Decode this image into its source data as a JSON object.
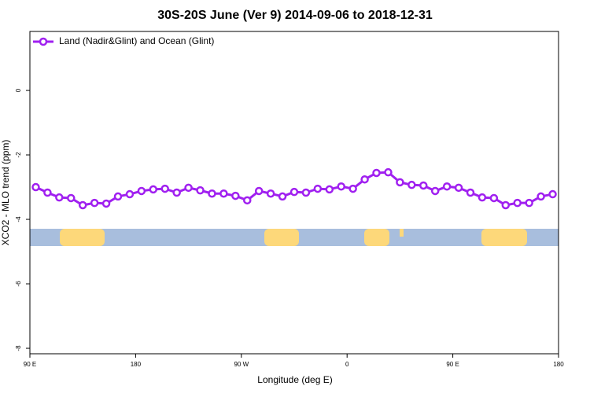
{
  "chart_data": {
    "type": "line",
    "title": "30S-20S June (Ver 9)   2014-09-06 to 2018-12-31",
    "xlabel": "Longitude (deg E)",
    "ylabel": "XCO2 - MLO trend (ppm)",
    "x": [
      95,
      105,
      115,
      125,
      135,
      145,
      155,
      165,
      175,
      185,
      195,
      205,
      215,
      225,
      235,
      245,
      255,
      265,
      275,
      285,
      295,
      305,
      315,
      325,
      335,
      345,
      355,
      365,
      375,
      385,
      395,
      405,
      415,
      425,
      435,
      445,
      455,
      465,
      475,
      485,
      495,
      505,
      515,
      525,
      535
    ],
    "series": [
      {
        "name": "Land (Nadir&Glint) and Ocean (Glint)",
        "color": "#a020f0",
        "values": [
          -3.0,
          -3.17,
          -3.32,
          -3.34,
          -3.56,
          -3.49,
          -3.51,
          -3.29,
          -3.22,
          -3.12,
          -3.07,
          -3.05,
          -3.17,
          -3.02,
          -3.1,
          -3.2,
          -3.2,
          -3.27,
          -3.41,
          -3.12,
          -3.2,
          -3.29,
          -3.15,
          -3.17,
          -3.05,
          -3.07,
          -2.98,
          -3.05,
          -2.76,
          -2.56,
          -2.54,
          -2.85,
          -2.93,
          -2.95,
          -3.12,
          -2.98,
          -3.02,
          -3.17,
          -3.32,
          -3.34,
          -3.56,
          -3.49,
          -3.49,
          -3.29,
          -3.22
        ]
      }
    ],
    "xlim": [
      90,
      540
    ],
    "xticks": [
      {
        "value": 90,
        "label": "90 E"
      },
      180,
      {
        "value": 270,
        "label": "90 W"
      },
      {
        "value": 360,
        "label": "0"
      },
      {
        "value": 450,
        "label": "90 E"
      },
      {
        "value": 540,
        "label": "180"
      }
    ],
    "ylim": [
      -8.17,
      1.83
    ],
    "yticks": [
      0,
      -2,
      -4,
      -6,
      -8
    ],
    "legend": "upper left"
  }
}
